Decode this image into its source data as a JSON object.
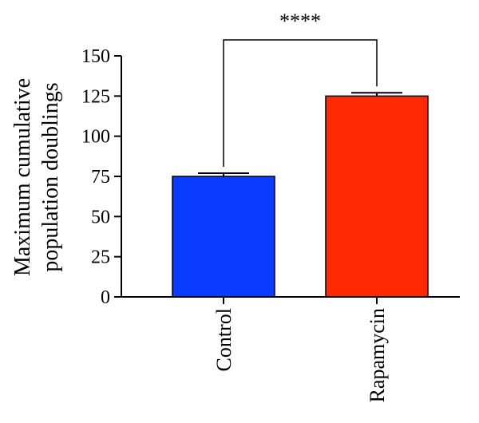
{
  "chart_data": {
    "type": "bar",
    "ylabel_lines": [
      "Maximum cumulative",
      "population doublings"
    ],
    "ylim": [
      0,
      150
    ],
    "yticks": [
      "0",
      "25",
      "50",
      "75",
      "100",
      "125",
      "150"
    ],
    "categories": [
      "Control",
      "Rapamycin"
    ],
    "values": [
      75,
      125
    ],
    "errors": [
      2,
      2
    ],
    "colors": [
      "#0a3cff",
      "#ff2a00"
    ],
    "significance": {
      "label": "****",
      "between": [
        0,
        1
      ]
    }
  }
}
